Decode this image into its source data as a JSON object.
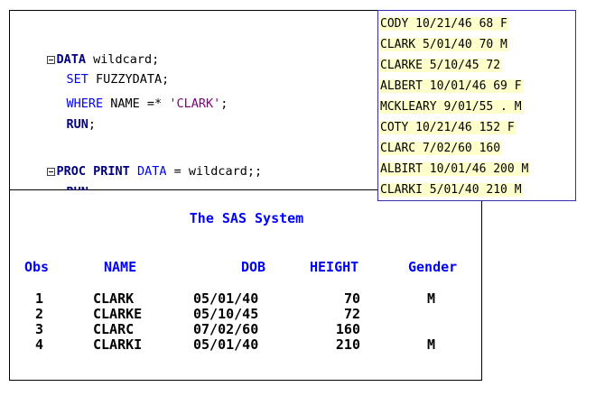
{
  "code": {
    "line1": {
      "kw": "DATA",
      "rest": " wildcard;"
    },
    "line2": {
      "kw": "SET",
      "rest": " FUZZYDATA;"
    },
    "line3": {
      "kw": "WHERE",
      "mid": " NAME =* ",
      "str": "'CLARK'",
      "end": ";"
    },
    "line4": {
      "kw": "RUN",
      "end": ";"
    },
    "line5": {
      "kw1": "PROC PRINT",
      "sp": " ",
      "kw2": "DATA",
      "rest": " = wildcard;;"
    },
    "line6": {
      "kw": "RUN",
      "end": ";"
    }
  },
  "datafile": {
    "rows": [
      "CODY 10/21/46 68 F",
      "CLARK 5/01/40 70 M",
      "CLARKE 5/10/45 72",
      "ALBERT 10/01/46 69 F",
      "MCKLEARY 9/01/55 . M",
      "COTY 10/21/46 152 F",
      "CLARC 7/02/60 160",
      "ALBIRT 10/01/46 200 M",
      "CLARKI 5/01/40 210 M"
    ]
  },
  "output": {
    "title": "The SAS System",
    "columns": [
      "Obs",
      "NAME",
      "DOB",
      "HEIGHT",
      "Gender"
    ],
    "rows": [
      [
        "1",
        "CLARK",
        "05/01/40",
        "70",
        "M"
      ],
      [
        "2",
        "CLARKE",
        "05/10/45",
        "72",
        ""
      ],
      [
        "3",
        "CLARC",
        "07/02/60",
        "160",
        ""
      ],
      [
        "4",
        "CLARKI",
        "05/01/40",
        "210",
        "M"
      ]
    ]
  },
  "colors": {
    "keyword_bold": "#000080",
    "keyword": "#0000ff",
    "string": "#800080",
    "output_header": "#0000ff",
    "data_highlight": "#ffffcc"
  }
}
